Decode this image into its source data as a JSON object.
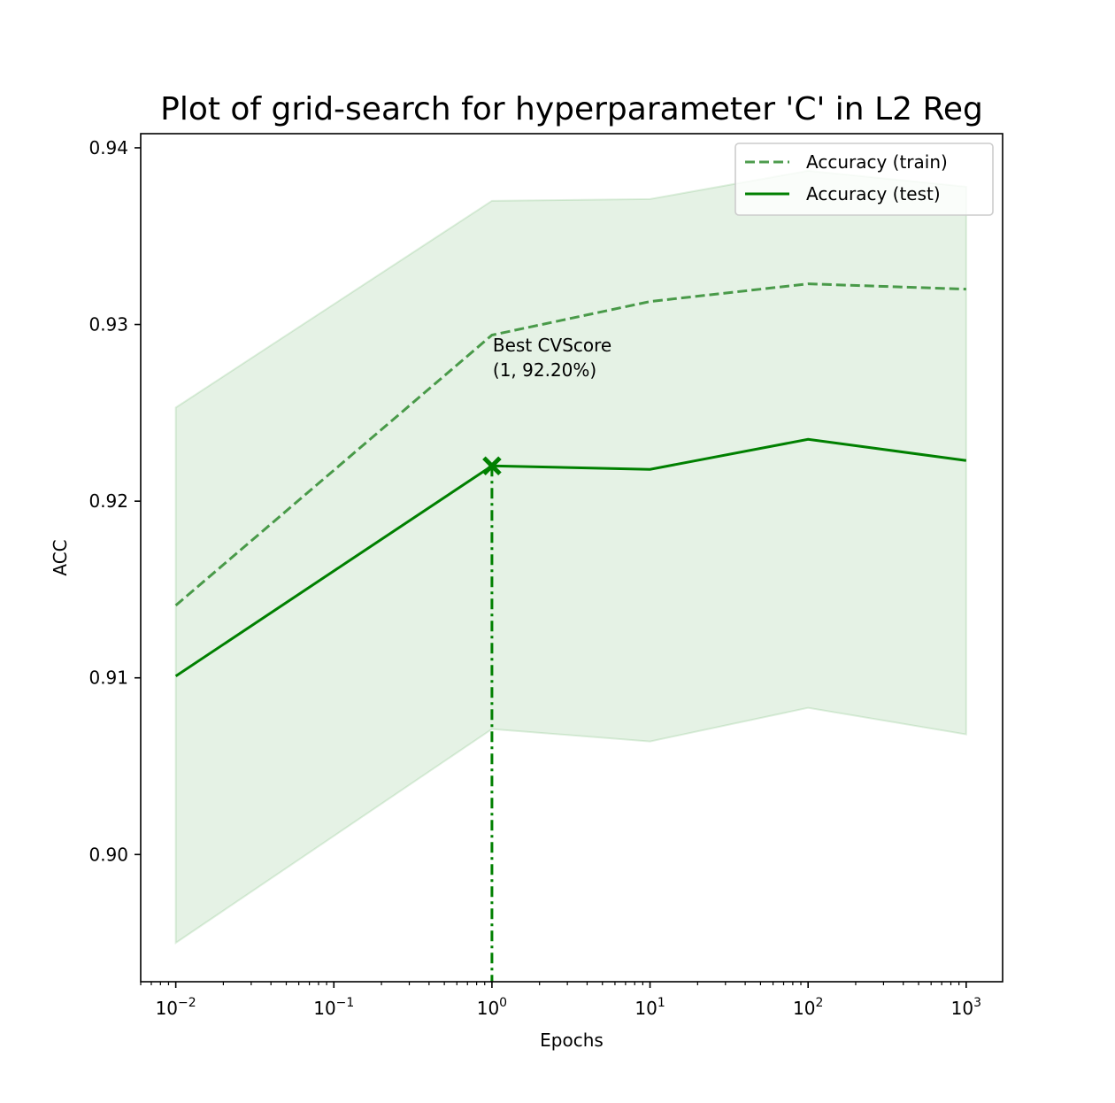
{
  "chart_data": {
    "type": "line",
    "title": "Plot of grid-search for hyperparameter 'C' in L2 Reg",
    "xlabel": "Epochs",
    "ylabel": "ACC",
    "x_scale": "log",
    "x": [
      0.01,
      1,
      10,
      100,
      1000
    ],
    "xlim": [
      0.006,
      1700
    ],
    "ylim": [
      0.8928,
      0.9408
    ],
    "x_ticks": [
      0.01,
      0.1,
      1,
      10,
      100,
      1000
    ],
    "x_tick_labels": [
      {
        "base": "10",
        "exp": "−2"
      },
      {
        "base": "10",
        "exp": "−1"
      },
      {
        "base": "10",
        "exp": "0"
      },
      {
        "base": "10",
        "exp": "1"
      },
      {
        "base": "10",
        "exp": "2"
      },
      {
        "base": "10",
        "exp": "3"
      }
    ],
    "y_ticks": [
      0.9,
      0.91,
      0.92,
      0.93,
      0.94
    ],
    "y_tick_labels": [
      "0.90",
      "0.91",
      "0.92",
      "0.93",
      "0.94"
    ],
    "grid": false,
    "legend_position": "top-right",
    "series": [
      {
        "name": "Accuracy (train)",
        "style": "dashed",
        "color": "#2e8b2e",
        "values": [
          0.9141,
          0.9294,
          0.9313,
          0.9323,
          0.932
        ]
      },
      {
        "name": "Accuracy (test)",
        "style": "solid",
        "color": "#008000",
        "values": [
          0.9101,
          0.922,
          0.9218,
          0.9235,
          0.9223
        ]
      }
    ],
    "band": {
      "color": "#008000",
      "opacity": 0.1,
      "lower": [
        0.895,
        0.9071,
        0.9064,
        0.9083,
        0.9068
      ],
      "upper": [
        0.9253,
        0.937,
        0.9371,
        0.9387,
        0.9378
      ]
    },
    "best_point": {
      "x": 1,
      "y": 0.922,
      "marker": "x",
      "color": "#008000",
      "annotation_lines": [
        "Best CVScore",
        "(1, 92.20%)"
      ]
    }
  }
}
